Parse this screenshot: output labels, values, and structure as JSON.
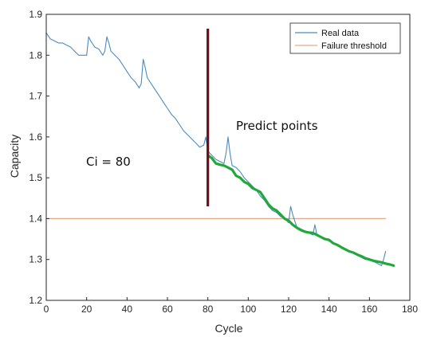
{
  "chart_data": {
    "type": "line",
    "xlabel": "Cycle",
    "ylabel": "Capacity",
    "xlim": [
      0,
      180
    ],
    "ylim": [
      1.2,
      1.9
    ],
    "xticks": [
      "0",
      "20",
      "40",
      "60",
      "80",
      "100",
      "120",
      "140",
      "160",
      "180"
    ],
    "yticks": [
      "1.2",
      "1.3",
      "1.4",
      "1.5",
      "1.6",
      "1.7",
      "1.8",
      "1.9"
    ],
    "grid": false,
    "legend_position": "top-right",
    "legend": [
      "Real data",
      "Failure threshold"
    ],
    "annotations": [
      "Predict points",
      "Ci = 80"
    ],
    "vertical_marker": {
      "x": 80,
      "y_range": [
        1.43,
        1.865
      ]
    },
    "series": [
      {
        "name": "Real data",
        "color": "#4a8bbf",
        "x": [
          0,
          2,
          4,
          6,
          8,
          10,
          12,
          14,
          16,
          18,
          20,
          21,
          22,
          24,
          26,
          28,
          29,
          30,
          31,
          32,
          34,
          36,
          38,
          40,
          42,
          44,
          46,
          47,
          48,
          49,
          50,
          52,
          54,
          56,
          58,
          60,
          62,
          64,
          66,
          68,
          70,
          72,
          74,
          76,
          78,
          79,
          80,
          82,
          84,
          86,
          88,
          89,
          90,
          91,
          92,
          94,
          96,
          98,
          100,
          102,
          104,
          106,
          108,
          110,
          112,
          114,
          116,
          118,
          120,
          121,
          122,
          124,
          126,
          128,
          130,
          132,
          133,
          134,
          136,
          138,
          140,
          142,
          144,
          146,
          148,
          150,
          152,
          154,
          156,
          158,
          160,
          162,
          164,
          166,
          167,
          168
        ],
        "y": [
          1.855,
          1.84,
          1.835,
          1.83,
          1.83,
          1.825,
          1.82,
          1.81,
          1.8,
          1.8,
          1.8,
          1.845,
          1.835,
          1.82,
          1.815,
          1.8,
          1.81,
          1.845,
          1.83,
          1.81,
          1.8,
          1.79,
          1.775,
          1.76,
          1.745,
          1.735,
          1.72,
          1.73,
          1.79,
          1.77,
          1.745,
          1.73,
          1.715,
          1.7,
          1.685,
          1.67,
          1.655,
          1.645,
          1.63,
          1.615,
          1.605,
          1.595,
          1.585,
          1.575,
          1.58,
          1.6,
          1.565,
          1.555,
          1.545,
          1.54,
          1.535,
          1.56,
          1.6,
          1.56,
          1.53,
          1.525,
          1.515,
          1.5,
          1.49,
          1.48,
          1.47,
          1.455,
          1.445,
          1.43,
          1.42,
          1.415,
          1.405,
          1.4,
          1.39,
          1.43,
          1.41,
          1.38,
          1.375,
          1.37,
          1.365,
          1.36,
          1.385,
          1.36,
          1.355,
          1.35,
          1.345,
          1.34,
          1.335,
          1.33,
          1.325,
          1.32,
          1.315,
          1.31,
          1.305,
          1.3,
          1.3,
          1.295,
          1.29,
          1.285,
          1.3,
          1.32
        ]
      },
      {
        "name": "Failure threshold",
        "color": "#e5a788",
        "x": [
          0,
          168
        ],
        "y": [
          1.4,
          1.4
        ]
      },
      {
        "color": "#22a83a",
        "x": [
          80,
          82,
          84,
          86,
          88,
          90,
          92,
          94,
          96,
          98,
          100,
          102,
          104,
          106,
          108,
          110,
          112,
          114,
          116,
          118,
          120,
          122,
          124,
          126,
          128,
          130,
          132,
          134,
          136,
          138,
          140,
          142,
          144,
          146,
          148,
          150,
          152,
          154,
          156,
          158,
          160,
          162,
          164,
          166,
          168,
          170,
          172
        ],
        "y": [
          1.555,
          1.548,
          1.535,
          1.532,
          1.53,
          1.525,
          1.52,
          1.505,
          1.5,
          1.49,
          1.485,
          1.475,
          1.47,
          1.465,
          1.45,
          1.435,
          1.425,
          1.42,
          1.41,
          1.4,
          1.395,
          1.385,
          1.378,
          1.372,
          1.368,
          1.366,
          1.365,
          1.36,
          1.355,
          1.35,
          1.348,
          1.34,
          1.336,
          1.33,
          1.325,
          1.32,
          1.317,
          1.312,
          1.308,
          1.303,
          1.3,
          1.297,
          1.295,
          1.293,
          1.29,
          1.288,
          1.285
        ]
      }
    ]
  }
}
